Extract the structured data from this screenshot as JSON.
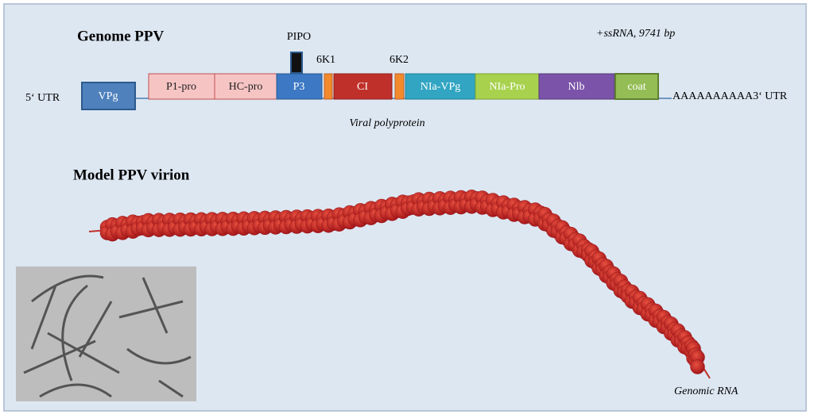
{
  "genome": {
    "title": "Genome PPV",
    "info": "+ssRNA, 9741 bp",
    "utr5": "5‘ UTR",
    "utr3": "AAAAAAAAAA3‘ UTR",
    "pipo": "PIPO",
    "k1": "6K1",
    "k2": "6K2",
    "polyprotein": "Viral polyprotein",
    "genes": [
      "VPg",
      "P1-pro",
      "HC-pro",
      "P3",
      "CI",
      "NIa-VPg",
      "NIa-Pro",
      "Nlb",
      "coat"
    ]
  },
  "virion": {
    "title": "Model PPV virion",
    "rna": "Genomic RNA"
  }
}
